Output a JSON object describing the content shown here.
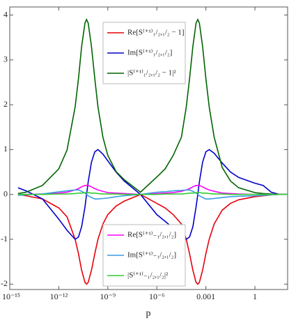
{
  "chart_data": {
    "type": "line",
    "x_label": "p",
    "xscale": "log",
    "x": [
      3.2e-15,
      1e-14,
      1e-13,
      1e-12,
      3.2e-12,
      1e-11,
      1.6e-11,
      2.5e-11,
      4e-11,
      5e-11,
      6.3e-11,
      1e-10,
      1.6e-10,
      2.5e-10,
      5e-10,
      1e-09,
      3.2e-09,
      1e-08,
      1e-07,
      1e-06,
      3.2e-06,
      1e-05,
      3.2e-05,
      6.3e-05,
      0.0001,
      0.00016,
      0.00025,
      0.00032,
      0.0004,
      0.00063,
      0.001,
      0.0016,
      0.0032,
      0.01,
      0.032,
      0.1,
      1,
      3.2,
      10,
      32,
      100
    ],
    "xlim": [
      1e-15,
      100
    ],
    "xticks": [
      {
        "value": 1e-15,
        "label": "10⁻¹⁵"
      },
      {
        "value": 1e-12,
        "label": "10⁻¹²"
      },
      {
        "value": 1e-09,
        "label": "10⁻⁹"
      },
      {
        "value": 1e-06,
        "label": "10⁻⁶"
      },
      0.001,
      1
    ],
    "ylim": [
      -2.12,
      4.18
    ],
    "yticks": [
      -2,
      -1,
      0,
      1,
      2,
      3,
      4
    ],
    "series": [
      {
        "name": "Re[S⁽⁺¹⁾₁/₂,₁/₂ − 1]",
        "color": "#e8000b",
        "values": [
          0,
          -0.03,
          -0.1,
          -0.3,
          -0.5,
          -1.0,
          -1.32,
          -1.69,
          -1.96,
          -2.0,
          -1.96,
          -1.69,
          -1.32,
          -1.0,
          -0.66,
          -0.45,
          -0.26,
          -0.15,
          0,
          -0.2,
          -0.3,
          -0.45,
          -0.66,
          -1.0,
          -1.32,
          -1.69,
          -1.96,
          -2.0,
          -1.96,
          -1.69,
          -1.32,
          -1.0,
          -0.66,
          -0.35,
          -0.2,
          -0.12,
          -0.05,
          -0.03,
          -0.01,
          0,
          0
        ]
      },
      {
        "name": "Im[S⁽⁺¹⁾₁/₂,₁/₂]",
        "color": "#0000cc",
        "values": [
          0.15,
          0.08,
          -0.1,
          -0.55,
          -0.8,
          -1.0,
          -0.95,
          -0.72,
          -0.28,
          0,
          0.28,
          0.72,
          0.95,
          1.0,
          0.9,
          0.75,
          0.5,
          0.3,
          0,
          -0.45,
          -0.6,
          -0.75,
          -0.9,
          -1.0,
          -0.95,
          -0.72,
          -0.28,
          0,
          0.28,
          0.72,
          0.95,
          1.0,
          0.92,
          0.7,
          0.5,
          0.38,
          0.25,
          0.2,
          0.05,
          0,
          0
        ]
      },
      {
        "name": "|S⁽⁺¹⁾₁/₂,₁/₂ − 1|²",
        "color": "#006400",
        "values": [
          0.02,
          0.05,
          0.2,
          0.57,
          0.99,
          1.95,
          2.58,
          3.3,
          3.82,
          3.9,
          3.82,
          3.3,
          2.58,
          1.95,
          1.28,
          0.87,
          0.51,
          0.33,
          0.05,
          0.39,
          0.57,
          0.87,
          1.28,
          1.95,
          2.58,
          3.3,
          3.82,
          3.9,
          3.82,
          3.3,
          2.58,
          1.95,
          1.28,
          0.6,
          0.3,
          0.15,
          0.04,
          0.02,
          0.01,
          0,
          0
        ]
      },
      {
        "name": "Re[S⁽⁺¹⁾₋₁/₂,₁/₂]",
        "color": "#ff00ff",
        "values": [
          0,
          0,
          0.01,
          0.03,
          0.05,
          0.1,
          0.13,
          0.17,
          0.2,
          0.2,
          0.2,
          0.17,
          0.13,
          0.1,
          0.07,
          0.04,
          0.03,
          0.02,
          0,
          0.02,
          0.03,
          0.04,
          0.07,
          0.1,
          0.13,
          0.17,
          0.2,
          0.2,
          0.2,
          0.17,
          0.13,
          0.1,
          0.07,
          0.03,
          0.02,
          0.01,
          0,
          0,
          0,
          0,
          0
        ]
      },
      {
        "name": "Im[S⁽⁺¹⁾₋₁/₂,₁/₂]",
        "color": "#3a9be0",
        "values": [
          -0.02,
          -0.01,
          0.01,
          0.06,
          0.08,
          0.1,
          0.1,
          0.07,
          0.03,
          0,
          -0.03,
          -0.07,
          -0.1,
          -0.1,
          -0.09,
          -0.08,
          -0.05,
          -0.03,
          0,
          0.05,
          0.06,
          0.08,
          0.09,
          0.1,
          0.1,
          0.07,
          0.03,
          0,
          -0.03,
          -0.07,
          -0.1,
          -0.1,
          -0.09,
          -0.07,
          -0.05,
          -0.04,
          -0.03,
          -0.02,
          -0.01,
          0,
          0
        ]
      },
      {
        "name": "|S⁽⁺¹⁾₋₁/₂,₁/₂|²",
        "color": "#33cc33",
        "values": [
          0,
          0,
          0,
          0.01,
          0.01,
          0.02,
          0.03,
          0.03,
          0.04,
          0.04,
          0.04,
          0.03,
          0.03,
          0.02,
          0.01,
          0.01,
          0.01,
          0,
          0,
          0,
          0.01,
          0.01,
          0.01,
          0.02,
          0.03,
          0.03,
          0.04,
          0.04,
          0.04,
          0.03,
          0.03,
          0.02,
          0.01,
          0.01,
          0,
          0,
          0,
          0,
          0,
          0,
          0
        ]
      }
    ]
  }
}
